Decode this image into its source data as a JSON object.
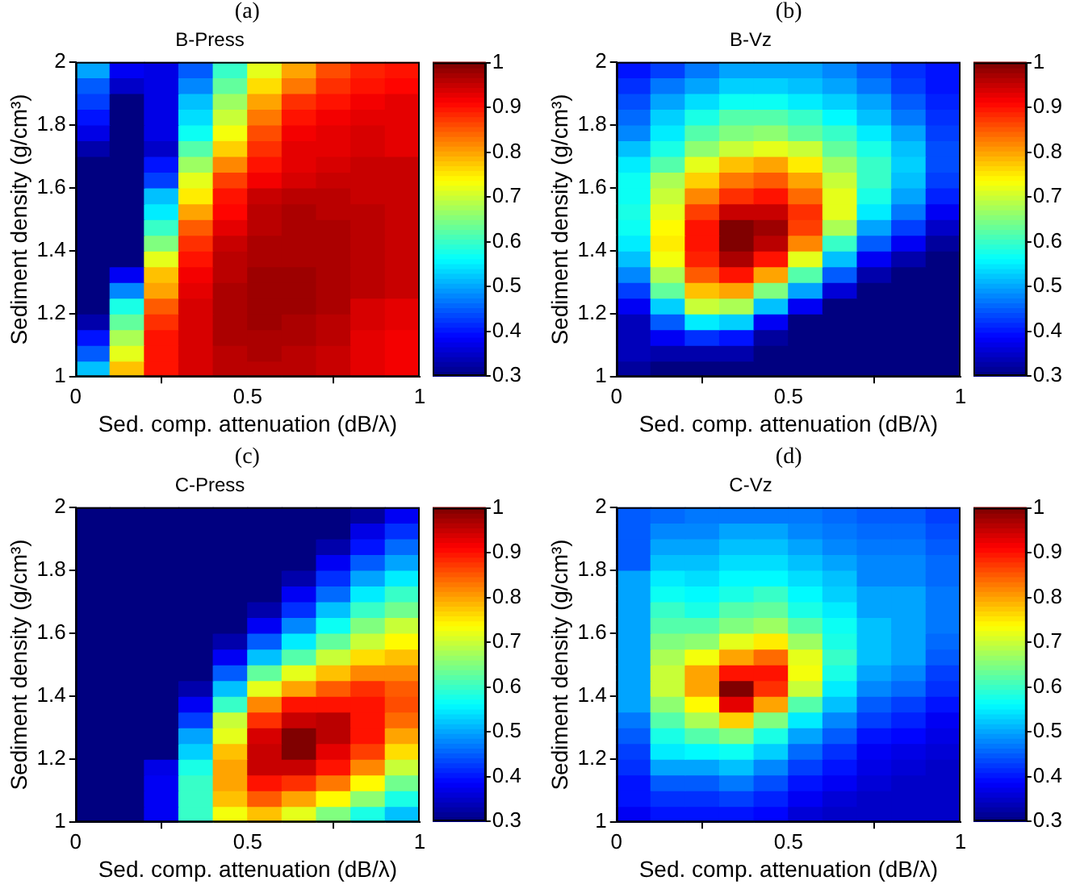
{
  "chart_data": [
    {
      "type": "heatmap",
      "title": "B-Press",
      "annotations": [
        "(a)"
      ],
      "xlabel": "Sed. comp. attenuation (dB/λ)",
      "ylabel": "Sediment density (g/cm³)",
      "x": [
        0.05,
        0.15,
        0.25,
        0.35,
        0.45,
        0.55,
        0.65,
        0.75,
        0.85,
        0.95
      ],
      "y": [
        1.975,
        1.925,
        1.875,
        1.825,
        1.775,
        1.725,
        1.675,
        1.625,
        1.575,
        1.525,
        1.475,
        1.425,
        1.375,
        1.325,
        1.275,
        1.225,
        1.175,
        1.125,
        1.075,
        1.025
      ],
      "xlim": [
        0,
        1
      ],
      "xticks": [
        0,
        0.5,
        1
      ],
      "ylim": [
        1,
        2
      ],
      "yticks": [
        1,
        1.2,
        1.4,
        1.6,
        1.8,
        2
      ],
      "clim": [
        0.3,
        1
      ],
      "cticks": [
        0.3,
        0.4,
        0.5,
        0.6,
        0.7,
        0.8,
        0.9,
        1
      ],
      "cells": [
        [
          0.5,
          0.38,
          0.37,
          0.45,
          0.6,
          0.72,
          0.8,
          0.86,
          0.89,
          0.9
        ],
        [
          0.45,
          0.35,
          0.37,
          0.48,
          0.63,
          0.76,
          0.83,
          0.88,
          0.9,
          0.91
        ],
        [
          0.43,
          0.3,
          0.37,
          0.52,
          0.67,
          0.8,
          0.88,
          0.9,
          0.92,
          0.93
        ],
        [
          0.4,
          0.3,
          0.37,
          0.54,
          0.7,
          0.83,
          0.9,
          0.92,
          0.93,
          0.93
        ],
        [
          0.37,
          0.3,
          0.37,
          0.57,
          0.73,
          0.86,
          0.92,
          0.93,
          0.94,
          0.93
        ],
        [
          0.33,
          0.3,
          0.35,
          0.62,
          0.77,
          0.88,
          0.93,
          0.93,
          0.94,
          0.93
        ],
        [
          0.3,
          0.3,
          0.4,
          0.67,
          0.82,
          0.9,
          0.93,
          0.94,
          0.95,
          0.95
        ],
        [
          0.3,
          0.3,
          0.43,
          0.72,
          0.87,
          0.92,
          0.94,
          0.95,
          0.95,
          0.95
        ],
        [
          0.3,
          0.3,
          0.52,
          0.75,
          0.9,
          0.95,
          0.96,
          0.96,
          0.95,
          0.95
        ],
        [
          0.3,
          0.3,
          0.55,
          0.8,
          0.91,
          0.96,
          0.97,
          0.96,
          0.96,
          0.95
        ],
        [
          0.3,
          0.3,
          0.6,
          0.85,
          0.93,
          0.96,
          0.97,
          0.97,
          0.96,
          0.95
        ],
        [
          0.3,
          0.3,
          0.65,
          0.88,
          0.95,
          0.97,
          0.97,
          0.97,
          0.96,
          0.95
        ],
        [
          0.3,
          0.3,
          0.72,
          0.9,
          0.96,
          0.97,
          0.97,
          0.97,
          0.96,
          0.95
        ],
        [
          0.3,
          0.38,
          0.78,
          0.92,
          0.96,
          0.98,
          0.98,
          0.97,
          0.96,
          0.95
        ],
        [
          0.3,
          0.48,
          0.8,
          0.93,
          0.97,
          0.98,
          0.98,
          0.97,
          0.96,
          0.95
        ],
        [
          0.3,
          0.58,
          0.85,
          0.94,
          0.97,
          0.98,
          0.98,
          0.97,
          0.94,
          0.93
        ],
        [
          0.33,
          0.63,
          0.88,
          0.94,
          0.97,
          0.98,
          0.97,
          0.96,
          0.94,
          0.93
        ],
        [
          0.4,
          0.68,
          0.9,
          0.94,
          0.97,
          0.97,
          0.97,
          0.96,
          0.93,
          0.92
        ],
        [
          0.45,
          0.72,
          0.9,
          0.94,
          0.96,
          0.97,
          0.96,
          0.95,
          0.93,
          0.92
        ],
        [
          0.52,
          0.78,
          0.9,
          0.94,
          0.96,
          0.96,
          0.96,
          0.95,
          0.93,
          0.92
        ]
      ]
    },
    {
      "type": "heatmap",
      "title": "B-Vz",
      "annotations": [
        "(b)"
      ],
      "xlabel": "Sed. comp. attenuation (dB/λ)",
      "ylabel": "Sediment density (g/cm³)",
      "x": [
        0.05,
        0.15,
        0.25,
        0.35,
        0.45,
        0.55,
        0.65,
        0.75,
        0.85,
        0.95
      ],
      "y": [
        1.975,
        1.925,
        1.875,
        1.825,
        1.775,
        1.725,
        1.675,
        1.625,
        1.575,
        1.525,
        1.475,
        1.425,
        1.375,
        1.325,
        1.275,
        1.225,
        1.175,
        1.125,
        1.075,
        1.025
      ],
      "xlim": [
        0,
        1
      ],
      "xticks": [
        0,
        0.5,
        1
      ],
      "ylim": [
        1,
        2
      ],
      "yticks": [
        1,
        1.2,
        1.4,
        1.6,
        1.8,
        2
      ],
      "clim": [
        0.3,
        1
      ],
      "cticks": [
        0.3,
        0.4,
        0.5,
        0.6,
        0.7,
        0.8,
        0.9,
        1
      ],
      "cells": [
        [
          0.4,
          0.43,
          0.47,
          0.5,
          0.5,
          0.5,
          0.48,
          0.45,
          0.42,
          0.4
        ],
        [
          0.42,
          0.47,
          0.5,
          0.53,
          0.53,
          0.52,
          0.5,
          0.47,
          0.43,
          0.4
        ],
        [
          0.44,
          0.5,
          0.54,
          0.57,
          0.57,
          0.55,
          0.53,
          0.5,
          0.45,
          0.41
        ],
        [
          0.46,
          0.53,
          0.58,
          0.62,
          0.62,
          0.6,
          0.56,
          0.52,
          0.47,
          0.42
        ],
        [
          0.48,
          0.55,
          0.62,
          0.65,
          0.66,
          0.63,
          0.6,
          0.55,
          0.5,
          0.43
        ],
        [
          0.52,
          0.58,
          0.66,
          0.7,
          0.72,
          0.7,
          0.63,
          0.58,
          0.52,
          0.44
        ],
        [
          0.55,
          0.62,
          0.72,
          0.78,
          0.8,
          0.75,
          0.67,
          0.6,
          0.53,
          0.44
        ],
        [
          0.57,
          0.68,
          0.77,
          0.83,
          0.85,
          0.8,
          0.7,
          0.6,
          0.52,
          0.43
        ],
        [
          0.57,
          0.7,
          0.82,
          0.88,
          0.9,
          0.84,
          0.72,
          0.58,
          0.5,
          0.41
        ],
        [
          0.58,
          0.72,
          0.87,
          0.95,
          0.95,
          0.88,
          0.72,
          0.55,
          0.47,
          0.38
        ],
        [
          0.57,
          0.74,
          0.9,
          1,
          0.98,
          0.87,
          0.68,
          0.5,
          0.43,
          0.35
        ],
        [
          0.55,
          0.75,
          0.9,
          1,
          0.96,
          0.82,
          0.6,
          0.45,
          0.38,
          0.32
        ],
        [
          0.52,
          0.73,
          0.89,
          0.97,
          0.9,
          0.72,
          0.52,
          0.38,
          0.33,
          0.3
        ],
        [
          0.48,
          0.68,
          0.85,
          0.9,
          0.8,
          0.62,
          0.45,
          0.33,
          0.3,
          0.3
        ],
        [
          0.43,
          0.63,
          0.78,
          0.8,
          0.65,
          0.5,
          0.36,
          0.3,
          0.3,
          0.3
        ],
        [
          0.38,
          0.53,
          0.7,
          0.68,
          0.52,
          0.38,
          0.3,
          0.3,
          0.3,
          0.3
        ],
        [
          0.34,
          0.45,
          0.55,
          0.53,
          0.38,
          0.3,
          0.3,
          0.3,
          0.3,
          0.3
        ],
        [
          0.34,
          0.38,
          0.42,
          0.4,
          0.32,
          0.3,
          0.3,
          0.3,
          0.3,
          0.3
        ],
        [
          0.34,
          0.33,
          0.33,
          0.33,
          0.3,
          0.3,
          0.3,
          0.3,
          0.3,
          0.3
        ],
        [
          0.32,
          0.3,
          0.3,
          0.3,
          0.3,
          0.3,
          0.3,
          0.3,
          0.3,
          0.3
        ]
      ]
    },
    {
      "type": "heatmap",
      "title": "C-Press",
      "annotations": [
        "(c)"
      ],
      "xlabel": "Sed. comp. attenuation (dB/λ)",
      "ylabel": "Sediment density (g/cm³)",
      "x": [
        0.05,
        0.15,
        0.25,
        0.35,
        0.45,
        0.55,
        0.65,
        0.75,
        0.85,
        0.95
      ],
      "y": [
        1.975,
        1.925,
        1.875,
        1.825,
        1.775,
        1.725,
        1.675,
        1.625,
        1.575,
        1.525,
        1.475,
        1.425,
        1.375,
        1.325,
        1.275,
        1.225,
        1.175,
        1.125,
        1.075,
        1.025
      ],
      "xlim": [
        0,
        1
      ],
      "xticks": [
        0,
        0.5,
        1
      ],
      "ylim": [
        1,
        2
      ],
      "yticks": [
        1,
        1.2,
        1.4,
        1.6,
        1.8,
        2
      ],
      "clim": [
        0.3,
        1
      ],
      "cticks": [
        0.3,
        0.4,
        0.5,
        0.6,
        0.7,
        0.8,
        0.9,
        1
      ],
      "cells": [
        [
          0.3,
          0.3,
          0.3,
          0.3,
          0.3,
          0.3,
          0.3,
          0.3,
          0.32,
          0.38
        ],
        [
          0.3,
          0.3,
          0.3,
          0.3,
          0.3,
          0.3,
          0.3,
          0.3,
          0.37,
          0.42
        ],
        [
          0.3,
          0.3,
          0.3,
          0.3,
          0.3,
          0.3,
          0.3,
          0.33,
          0.4,
          0.46
        ],
        [
          0.3,
          0.3,
          0.3,
          0.3,
          0.3,
          0.3,
          0.3,
          0.38,
          0.45,
          0.5
        ],
        [
          0.3,
          0.3,
          0.3,
          0.3,
          0.3,
          0.3,
          0.33,
          0.42,
          0.5,
          0.55
        ],
        [
          0.3,
          0.3,
          0.3,
          0.3,
          0.3,
          0.3,
          0.38,
          0.46,
          0.55,
          0.6
        ],
        [
          0.3,
          0.3,
          0.3,
          0.3,
          0.3,
          0.33,
          0.42,
          0.52,
          0.6,
          0.64
        ],
        [
          0.3,
          0.3,
          0.3,
          0.3,
          0.3,
          0.38,
          0.48,
          0.57,
          0.65,
          0.7
        ],
        [
          0.3,
          0.3,
          0.3,
          0.3,
          0.33,
          0.45,
          0.55,
          0.63,
          0.7,
          0.74
        ],
        [
          0.3,
          0.3,
          0.3,
          0.3,
          0.38,
          0.52,
          0.62,
          0.7,
          0.76,
          0.78
        ],
        [
          0.3,
          0.3,
          0.3,
          0.3,
          0.45,
          0.63,
          0.72,
          0.78,
          0.82,
          0.82
        ],
        [
          0.3,
          0.3,
          0.3,
          0.33,
          0.52,
          0.72,
          0.8,
          0.85,
          0.88,
          0.85
        ],
        [
          0.3,
          0.3,
          0.3,
          0.38,
          0.6,
          0.82,
          0.9,
          0.9,
          0.9,
          0.86
        ],
        [
          0.3,
          0.3,
          0.3,
          0.43,
          0.7,
          0.88,
          0.95,
          0.96,
          0.9,
          0.84
        ],
        [
          0.3,
          0.3,
          0.3,
          0.5,
          0.72,
          0.94,
          1,
          0.96,
          0.9,
          0.8
        ],
        [
          0.3,
          0.3,
          0.3,
          0.53,
          0.78,
          0.95,
          1,
          0.93,
          0.87,
          0.76
        ],
        [
          0.3,
          0.3,
          0.37,
          0.58,
          0.8,
          0.95,
          0.95,
          0.9,
          0.82,
          0.7
        ],
        [
          0.3,
          0.3,
          0.38,
          0.6,
          0.8,
          0.9,
          0.88,
          0.83,
          0.74,
          0.64
        ],
        [
          0.3,
          0.3,
          0.38,
          0.6,
          0.78,
          0.85,
          0.8,
          0.74,
          0.66,
          0.58
        ],
        [
          0.3,
          0.3,
          0.38,
          0.6,
          0.73,
          0.78,
          0.72,
          0.65,
          0.58,
          0.52
        ]
      ]
    },
    {
      "type": "heatmap",
      "title": "C-Vz",
      "annotations": [
        "(d)"
      ],
      "xlabel": "Sed. comp. attenuation (dB/λ)",
      "ylabel": "Sediment density (g/cm³)",
      "x": [
        0.05,
        0.15,
        0.25,
        0.35,
        0.45,
        0.55,
        0.65,
        0.75,
        0.85,
        0.95
      ],
      "y": [
        1.975,
        1.925,
        1.875,
        1.825,
        1.775,
        1.725,
        1.675,
        1.625,
        1.575,
        1.525,
        1.475,
        1.425,
        1.375,
        1.325,
        1.275,
        1.225,
        1.175,
        1.125,
        1.075,
        1.025
      ],
      "xlim": [
        0,
        1
      ],
      "xticks": [
        0,
        0.5,
        1
      ],
      "ylim": [
        1,
        2
      ],
      "yticks": [
        1,
        1.2,
        1.4,
        1.6,
        1.8,
        2
      ],
      "clim": [
        0.3,
        1
      ],
      "cticks": [
        0.3,
        0.4,
        0.5,
        0.6,
        0.7,
        0.8,
        0.9,
        1
      ],
      "cells": [
        [
          0.45,
          0.46,
          0.47,
          0.47,
          0.47,
          0.47,
          0.46,
          0.45,
          0.45,
          0.43
        ],
        [
          0.45,
          0.48,
          0.48,
          0.5,
          0.5,
          0.48,
          0.47,
          0.46,
          0.46,
          0.44
        ],
        [
          0.45,
          0.5,
          0.5,
          0.52,
          0.52,
          0.5,
          0.48,
          0.47,
          0.47,
          0.45
        ],
        [
          0.45,
          0.52,
          0.52,
          0.54,
          0.54,
          0.52,
          0.5,
          0.48,
          0.48,
          0.46
        ],
        [
          0.5,
          0.55,
          0.54,
          0.56,
          0.56,
          0.54,
          0.52,
          0.48,
          0.48,
          0.46
        ],
        [
          0.5,
          0.57,
          0.56,
          0.58,
          0.6,
          0.56,
          0.53,
          0.5,
          0.5,
          0.47
        ],
        [
          0.5,
          0.6,
          0.58,
          0.62,
          0.63,
          0.58,
          0.55,
          0.5,
          0.5,
          0.47
        ],
        [
          0.5,
          0.62,
          0.62,
          0.65,
          0.67,
          0.62,
          0.57,
          0.52,
          0.5,
          0.47
        ],
        [
          0.5,
          0.65,
          0.66,
          0.72,
          0.75,
          0.67,
          0.58,
          0.52,
          0.5,
          0.46
        ],
        [
          0.5,
          0.68,
          0.73,
          0.8,
          0.84,
          0.72,
          0.6,
          0.52,
          0.5,
          0.45
        ],
        [
          0.5,
          0.7,
          0.8,
          0.9,
          0.9,
          0.73,
          0.58,
          0.5,
          0.48,
          0.43
        ],
        [
          0.5,
          0.7,
          0.8,
          1,
          0.88,
          0.7,
          0.55,
          0.48,
          0.46,
          0.42
        ],
        [
          0.5,
          0.66,
          0.74,
          0.93,
          0.8,
          0.62,
          0.52,
          0.45,
          0.43,
          0.4
        ],
        [
          0.47,
          0.62,
          0.68,
          0.77,
          0.65,
          0.55,
          0.48,
          0.43,
          0.41,
          0.38
        ],
        [
          0.45,
          0.58,
          0.62,
          0.65,
          0.58,
          0.5,
          0.45,
          0.4,
          0.39,
          0.37
        ],
        [
          0.43,
          0.55,
          0.56,
          0.57,
          0.53,
          0.46,
          0.42,
          0.38,
          0.37,
          0.36
        ],
        [
          0.42,
          0.5,
          0.5,
          0.52,
          0.48,
          0.43,
          0.4,
          0.37,
          0.36,
          0.35
        ],
        [
          0.4,
          0.45,
          0.45,
          0.47,
          0.44,
          0.4,
          0.38,
          0.36,
          0.35,
          0.35
        ],
        [
          0.4,
          0.42,
          0.42,
          0.43,
          0.41,
          0.38,
          0.36,
          0.35,
          0.35,
          0.35
        ],
        [
          0.38,
          0.4,
          0.4,
          0.4,
          0.39,
          0.36,
          0.35,
          0.35,
          0.35,
          0.35
        ]
      ]
    }
  ]
}
